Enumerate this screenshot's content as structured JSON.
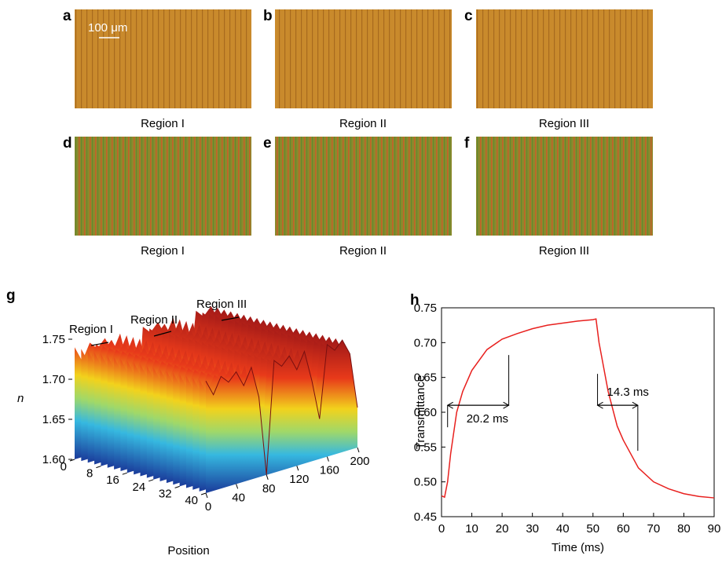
{
  "panels": [
    {
      "label": "a",
      "caption": "Region I"
    },
    {
      "label": "b",
      "caption": "Region II"
    },
    {
      "label": "c",
      "caption": "Region III"
    },
    {
      "label": "d",
      "caption": "Region I"
    },
    {
      "label": "e",
      "caption": "Region II"
    },
    {
      "label": "f",
      "caption": "Region III"
    }
  ],
  "scale_bar": "100 μm",
  "chart_data": [
    {
      "type": "surface",
      "panel_label": "g",
      "z_label": "n",
      "x_label": "Position",
      "x": [
        0,
        10,
        20,
        30,
        40,
        50,
        60,
        70,
        80,
        90,
        100,
        110,
        120,
        130,
        140,
        150,
        160,
        170,
        180,
        190,
        200
      ],
      "values": [
        1.74,
        1.72,
        1.74,
        1.73,
        1.74,
        1.72,
        1.74,
        1.7,
        1.6,
        1.74,
        1.73,
        1.74,
        1.72,
        1.74,
        1.7,
        1.65,
        1.74,
        1.73,
        1.74,
        1.72,
        1.65
      ],
      "zlim": [
        1.6,
        1.75
      ],
      "zticks": [
        {
          "value": 1.6,
          "label": "1.60"
        },
        {
          "value": 1.65,
          "label": "1.65"
        },
        {
          "value": 1.7,
          "label": "1.70"
        },
        {
          "value": 1.75,
          "label": "1.75"
        }
      ],
      "depthlim": [
        0,
        40
      ],
      "depthticks": [
        0,
        8,
        16,
        24,
        32,
        40
      ],
      "xlim": [
        0,
        200
      ],
      "xticks": [
        0,
        40,
        80,
        120,
        160,
        200
      ],
      "annotations": [
        "Region I",
        "Region II",
        "Region III"
      ]
    },
    {
      "type": "line",
      "panel_label": "h",
      "x_label": "Time (ms)",
      "y_label": "Transmittance",
      "color": "#e8201e",
      "x": [
        0,
        1,
        2,
        3,
        5,
        7,
        10,
        15,
        20,
        25,
        30,
        35,
        40,
        45,
        50,
        51,
        52,
        55,
        58,
        60,
        65,
        70,
        75,
        80,
        85,
        90
      ],
      "values": [
        0.48,
        0.478,
        0.5,
        0.54,
        0.6,
        0.63,
        0.66,
        0.69,
        0.705,
        0.713,
        0.72,
        0.725,
        0.728,
        0.731,
        0.733,
        0.734,
        0.7,
        0.63,
        0.58,
        0.56,
        0.52,
        0.5,
        0.49,
        0.483,
        0.479,
        0.477
      ],
      "xlim": [
        0,
        90
      ],
      "xticks": [
        0,
        10,
        20,
        30,
        40,
        50,
        60,
        70,
        80,
        90
      ],
      "ylim": [
        0.45,
        0.75
      ],
      "yticks": [
        0.45,
        {
          "value": 0.5,
          "label": "0.50"
        },
        0.55,
        {
          "value": 0.6,
          "label": "0.60"
        },
        0.65,
        {
          "value": 0.7,
          "label": "0.70"
        },
        0.75
      ],
      "annotations": [
        {
          "label": "20.2 ms",
          "x": [
            2,
            22.2
          ],
          "y": 0.61
        },
        {
          "label": "14.3 ms",
          "x": [
            51.5,
            64.8
          ],
          "y": 0.61
        }
      ]
    }
  ]
}
